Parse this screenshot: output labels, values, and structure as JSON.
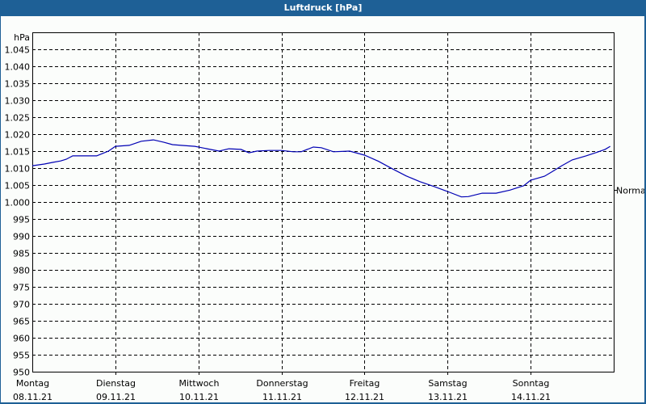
{
  "window": {
    "title": "Luftdruck [hPa]"
  },
  "colors": {
    "titlebar": "#1e6096",
    "line": "#0000b4",
    "grid": "#000000",
    "background": "#fbfdfb"
  },
  "chart_data": {
    "type": "line",
    "title": "Luftdruck [hPa]",
    "xlabel": "",
    "ylabel": "hPa",
    "ylim": [
      950,
      1045
    ],
    "yticks": [
      950,
      955,
      960,
      965,
      970,
      975,
      980,
      985,
      990,
      995,
      1000,
      1005,
      1010,
      1015,
      1020,
      1025,
      1030,
      1035,
      1040,
      1045
    ],
    "ytick_labels": [
      "950",
      "955",
      "960",
      "965",
      "970",
      "975",
      "980",
      "985",
      "990",
      "995",
      "1.000",
      "1.005",
      "1.010",
      "1.015",
      "1.020",
      "1.025",
      "1.030",
      "1.035",
      "1.040",
      "1.045"
    ],
    "xlim_hours": [
      0,
      168
    ],
    "x_categories": [
      {
        "day": "Montag",
        "date": "08.11.21"
      },
      {
        "day": "Dienstag",
        "date": "09.11.21"
      },
      {
        "day": "Mittwoch",
        "date": "10.11.21"
      },
      {
        "day": "Donnerstag",
        "date": "11.11.21"
      },
      {
        "day": "Freitag",
        "date": "12.11.21"
      },
      {
        "day": "Samstag",
        "date": "13.11.21"
      },
      {
        "day": "Sonntag",
        "date": "14.11.21"
      }
    ],
    "reference_line": {
      "label": "Normal",
      "value": 1003.5
    },
    "grid": true,
    "series": [
      {
        "name": "Luftdruck",
        "x_hours": [
          0,
          3.5,
          6,
          8.2,
          9.8,
          11.7,
          15.6,
          18.6,
          20.3,
          22,
          24,
          28,
          31.5,
          35,
          38,
          40.5,
          43,
          47,
          50.5,
          54,
          56.8,
          60.3,
          62.6,
          64.9,
          68.4,
          71.9,
          75.4,
          77.7,
          81.2,
          83.5,
          87,
          91.7,
          96,
          100,
          104,
          108,
          112,
          116,
          120,
          124,
          126,
          130,
          134,
          138,
          142,
          144,
          148,
          150,
          153,
          156,
          160,
          163,
          165.5,
          167
        ],
        "values": [
          1010.7,
          1011.2,
          1011.7,
          1012.1,
          1012.6,
          1013.6,
          1013.6,
          1013.6,
          1014.3,
          1015.0,
          1016.4,
          1016.7,
          1017.9,
          1018.3,
          1017.6,
          1016.9,
          1016.7,
          1016.4,
          1015.7,
          1015.0,
          1015.7,
          1015.5,
          1014.5,
          1015.0,
          1015.2,
          1015.2,
          1014.8,
          1014.8,
          1016.2,
          1016.0,
          1014.8,
          1015.0,
          1013.8,
          1012.0,
          1009.8,
          1007.7,
          1006.0,
          1004.6,
          1003.1,
          1001.5,
          1001.6,
          1002.6,
          1002.6,
          1003.5,
          1004.8,
          1006.4,
          1007.6,
          1008.8,
          1010.7,
          1012.4,
          1013.6,
          1014.6,
          1015.5,
          1016.4
        ]
      }
    ]
  }
}
